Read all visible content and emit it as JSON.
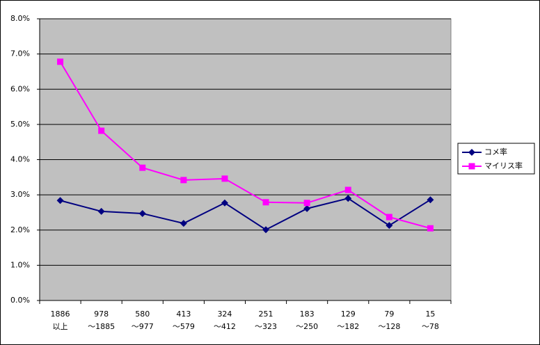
{
  "chart_data": {
    "type": "line",
    "categories": [
      [
        "1886",
        "以上"
      ],
      [
        "978",
        "～1885"
      ],
      [
        "580",
        "～977"
      ],
      [
        "413",
        "～579"
      ],
      [
        "324",
        "～412"
      ],
      [
        "251",
        "～323"
      ],
      [
        "183",
        "～250"
      ],
      [
        "129",
        "～182"
      ],
      [
        "79",
        "～128"
      ],
      [
        "15",
        "～78"
      ]
    ],
    "series": [
      {
        "name": "コメ率",
        "color": "#000080",
        "marker": "diamond",
        "values": [
          2.84,
          2.53,
          2.47,
          2.19,
          2.77,
          2.01,
          2.61,
          2.9,
          2.13,
          2.86
        ]
      },
      {
        "name": "マイリス率",
        "color": "#ff00ff",
        "marker": "square",
        "values": [
          6.78,
          4.82,
          3.77,
          3.42,
          3.46,
          2.79,
          2.77,
          3.14,
          2.37,
          2.05
        ]
      }
    ],
    "ylim": [
      0,
      8
    ],
    "yticks": [
      {
        "value": 0,
        "label": "0.0%"
      },
      {
        "value": 1,
        "label": "1.0%"
      },
      {
        "value": 2,
        "label": "2.0%"
      },
      {
        "value": 3,
        "label": "3.0%"
      },
      {
        "value": 4,
        "label": "4.0%"
      },
      {
        "value": 5,
        "label": "5.0%"
      },
      {
        "value": 6,
        "label": "6.0%"
      },
      {
        "value": 7,
        "label": "7.0%"
      },
      {
        "value": 8,
        "label": "8.0%"
      }
    ],
    "grid": true,
    "legend": "right",
    "plot_background": "#c0c0c0"
  }
}
